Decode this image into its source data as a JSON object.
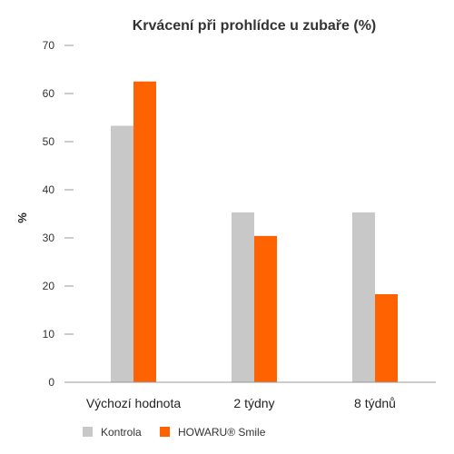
{
  "colors": {
    "series_0": "#c8c8c8",
    "series_1": "#ff6200",
    "axis": "#999999",
    "text": "#333333"
  },
  "chart_data": {
    "type": "bar",
    "title": "Krvácení při prohlídce u zubaře (%)",
    "xlabel": "",
    "ylabel": "%",
    "ylim": [
      0,
      70
    ],
    "yticks": [
      0,
      10,
      20,
      30,
      40,
      50,
      60,
      70
    ],
    "grid": false,
    "legend": "bottom-left",
    "categories": [
      "Výchozí hodnota",
      "2 týdny",
      "8 týdnů"
    ],
    "series": [
      {
        "name": "Kontrola",
        "values": [
          53.3,
          35.3,
          35.3
        ]
      },
      {
        "name": "HOWARU® Smile",
        "values": [
          62.5,
          30.4,
          18.3
        ]
      }
    ]
  }
}
